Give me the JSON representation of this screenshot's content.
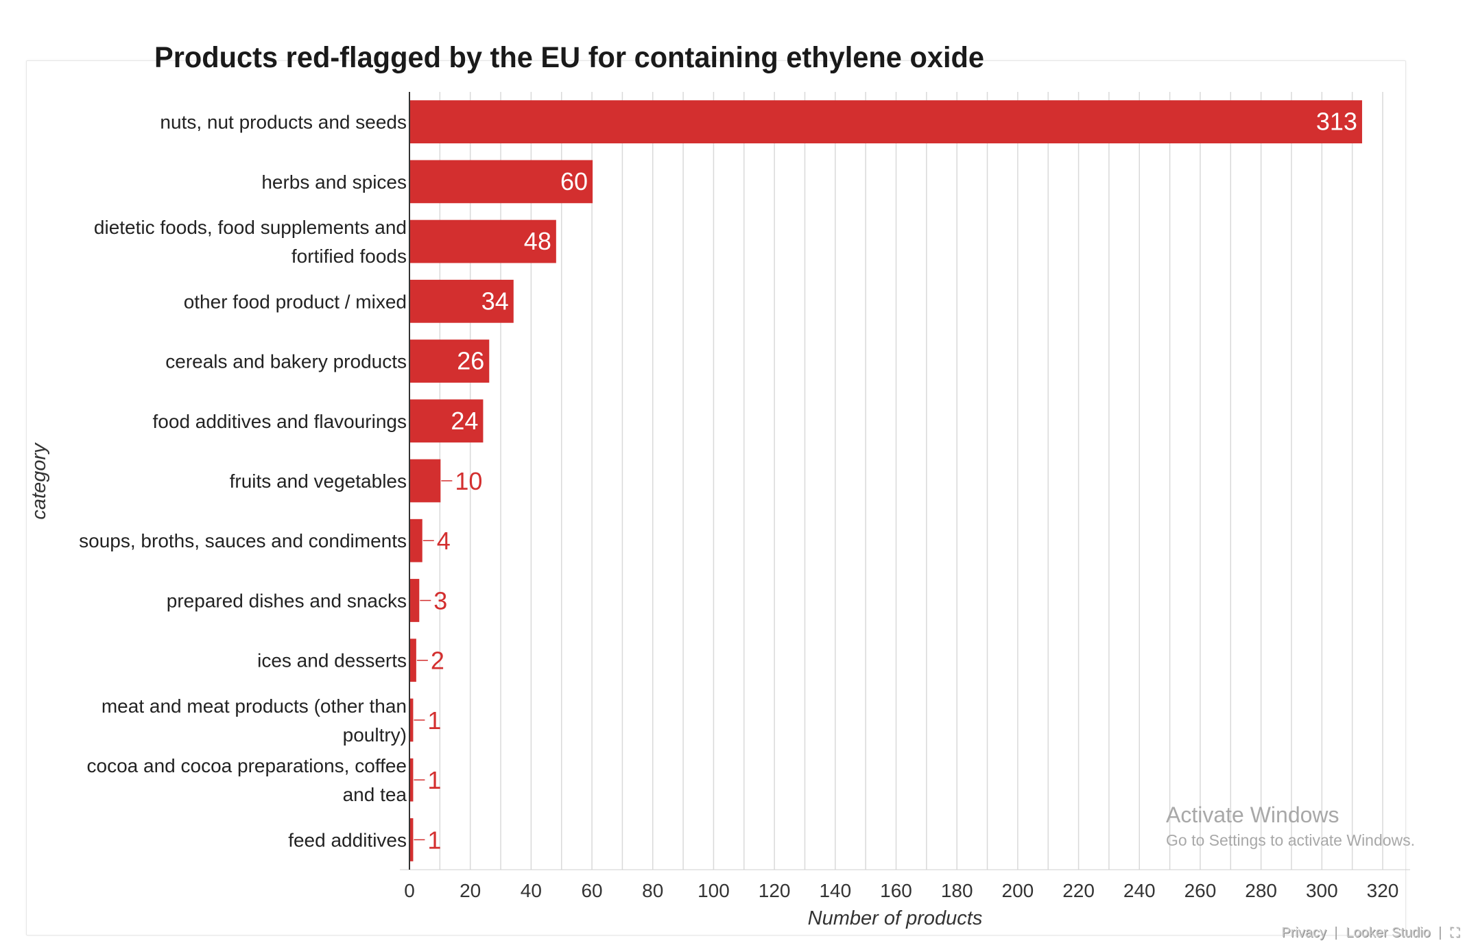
{
  "chart_data": {
    "type": "bar",
    "orientation": "horizontal",
    "title": "Products red-flagged by the EU for containing ethylene oxide",
    "xlabel": "Number of products",
    "ylabel": "category",
    "xlim": [
      0,
      320
    ],
    "x_ticks": [
      0,
      20,
      40,
      60,
      80,
      100,
      120,
      140,
      160,
      180,
      200,
      220,
      240,
      260,
      280,
      300,
      320
    ],
    "grid": true,
    "bar_color": "#d32f2f",
    "categories": [
      [
        "nuts, nut products and seeds"
      ],
      [
        "herbs and spices"
      ],
      [
        "dietetic foods, food supplements and",
        "fortified foods"
      ],
      [
        "other food product / mixed"
      ],
      [
        "cereals and bakery products"
      ],
      [
        "food additives and flavourings"
      ],
      [
        "fruits and vegetables"
      ],
      [
        "soups, broths, sauces and condiments"
      ],
      [
        "prepared dishes and snacks"
      ],
      [
        "ices and desserts"
      ],
      [
        "meat and meat products (other than",
        "poultry)"
      ],
      [
        "cocoa and cocoa preparations, coffee",
        "and tea"
      ],
      [
        "feed additives"
      ]
    ],
    "values": [
      313,
      60,
      48,
      34,
      26,
      24,
      10,
      4,
      3,
      2,
      1,
      1,
      1
    ]
  },
  "watermark": {
    "title": "Activate Windows",
    "subtitle": "Go to Settings to activate Windows."
  },
  "footer": {
    "privacy": "Privacy",
    "separator": "|",
    "brand": "Looker Studio",
    "fullscreen_icon": "fullscreen-icon"
  }
}
